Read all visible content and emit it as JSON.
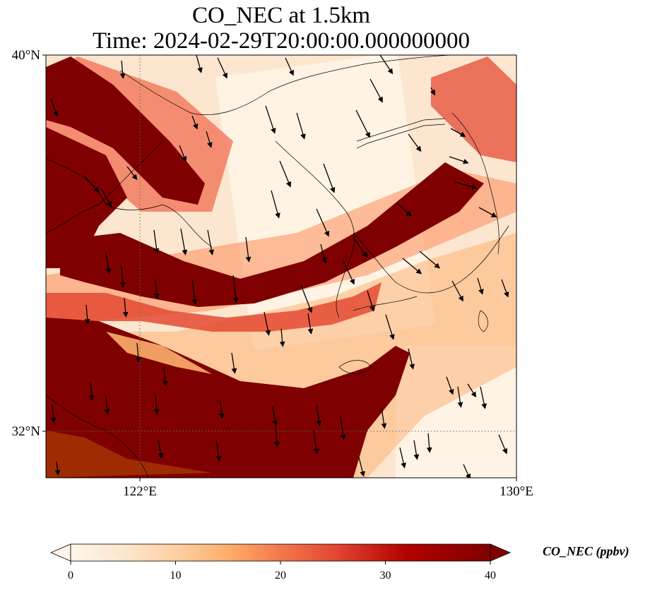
{
  "title": {
    "line1": "CO_NEC at 1.5km",
    "line2": "Time: 2024-02-29T20:00:00.000000000"
  },
  "map": {
    "lat_ticks": [
      {
        "value": 40,
        "label": "40°N"
      },
      {
        "value": 32,
        "label": "32°N"
      }
    ],
    "lon_ticks": [
      {
        "value": 122,
        "label": "122°E"
      },
      {
        "value": 130,
        "label": "130°E"
      }
    ],
    "extent": {
      "lon_min": 120,
      "lon_max": 130,
      "lat_min": 31,
      "lat_max": 40
    },
    "wind_vectors": "black arrows, mostly pointing south to south-southeast"
  },
  "colorbar": {
    "label": "CO_NEC (ppbv)",
    "min": 0,
    "max": 40,
    "ticks": [
      0,
      10,
      20,
      30,
      40
    ],
    "extend": "both",
    "colormap": [
      "#fff5eb",
      "#fee6ce",
      "#fdd0a2",
      "#fdae6b",
      "#fd8d3c",
      "#f16913",
      "#d94801",
      "#a63603",
      "#7f0000"
    ]
  }
}
